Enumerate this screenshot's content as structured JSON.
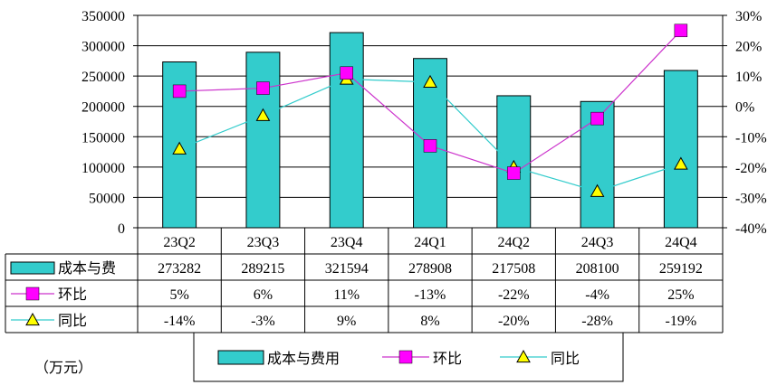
{
  "unit_label": "（万元）",
  "chart_data": {
    "type": "bar",
    "categories": [
      "23Q2",
      "23Q3",
      "23Q4",
      "24Q1",
      "24Q2",
      "24Q3",
      "24Q4"
    ],
    "y_left_ticks": [
      "350000",
      "300000",
      "250000",
      "200000",
      "150000",
      "100000",
      "50000",
      "0"
    ],
    "y_right_ticks": [
      "30%",
      "20%",
      "10%",
      "0%",
      "-10%",
      "-20%",
      "-30%",
      "-40%"
    ],
    "ylim_left": [
      0,
      350000
    ],
    "ylim_right": [
      -40,
      30
    ],
    "grid": true,
    "legend_position": "bottom",
    "series": [
      {
        "name": "成本与费",
        "legend_name": "成本与费用",
        "type": "bar",
        "axis": "left",
        "color": "#33CCCC",
        "values": [
          273282,
          289215,
          321594,
          278908,
          217508,
          208100,
          259192
        ],
        "labels": [
          "273282",
          "289215",
          "321594",
          "278908",
          "217508",
          "208100",
          "259192"
        ]
      },
      {
        "name": "环比",
        "legend_name": "环比",
        "type": "line",
        "axis": "right",
        "color": "#CC33CC",
        "marker": "square",
        "marker_color": "#FF00FF",
        "values": [
          5,
          6,
          11,
          -13,
          -22,
          -4,
          25
        ],
        "labels": [
          "5%",
          "6%",
          "11%",
          "-13%",
          "-22%",
          "-4%",
          "25%"
        ]
      },
      {
        "name": "同比",
        "legend_name": "同比",
        "type": "line",
        "axis": "right",
        "color": "#33CCCC",
        "marker": "triangle",
        "marker_color": "#FFFF00",
        "values": [
          -14,
          -3,
          9,
          8,
          -20,
          -28,
          -19
        ],
        "labels": [
          "-14%",
          "-3%",
          "9%",
          "8%",
          "-20%",
          "-28%",
          "-19%"
        ]
      }
    ]
  }
}
